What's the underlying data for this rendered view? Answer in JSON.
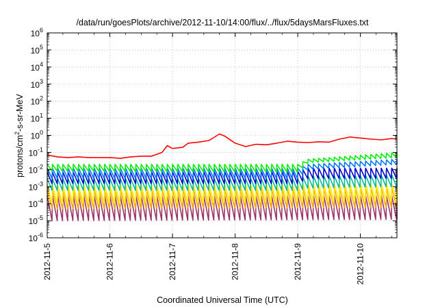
{
  "chart_data": {
    "type": "line",
    "title": "/data/run/goesPlots/archive/2012-11-10/14:00/flux/../flux/5daysMarsFluxes.txt",
    "xlabel": "Coordinated Universal Time (UTC)",
    "ylabel_base": "protons/cm",
    "ylabel_sup": "2",
    "ylabel_rest": "-s-sr-MeV",
    "yscale": "log",
    "ylim": [
      1e-06,
      1000000.0
    ],
    "xlim": [
      "2012-11-05 00:00",
      "2012-11-10 14:00"
    ],
    "grid": true,
    "legend": "none",
    "y_ticks": [
      {
        "exp": -6,
        "base": "10",
        "sup": "-6"
      },
      {
        "exp": -5,
        "base": "10",
        "sup": "-5"
      },
      {
        "exp": -4,
        "base": "10",
        "sup": "-4"
      },
      {
        "exp": -3,
        "base": "10",
        "sup": "-3"
      },
      {
        "exp": -2,
        "base": "10",
        "sup": "-2"
      },
      {
        "exp": -1,
        "base": "10",
        "sup": "-1"
      },
      {
        "exp": 0,
        "base": "10",
        "sup": "0"
      },
      {
        "exp": 1,
        "base": "10",
        "sup": "1"
      },
      {
        "exp": 2,
        "base": "10",
        "sup": "2"
      },
      {
        "exp": 3,
        "base": "10",
        "sup": "3"
      },
      {
        "exp": 4,
        "base": "10",
        "sup": "4"
      },
      {
        "exp": 5,
        "base": "10",
        "sup": "5"
      },
      {
        "exp": 6,
        "base": "10",
        "sup": "6"
      }
    ],
    "x_ticks": [
      "2012-11-5",
      "2012-11-6",
      "2012-11-7",
      "2012-11-8",
      "2012-11-9",
      "2012-11-10"
    ],
    "sample_step_hours": 2,
    "series": [
      {
        "color": "#ff0000",
        "kind": "ramp_points",
        "points": [
          [
            "2012-11-05 00:00",
            0.07
          ],
          [
            "2012-11-05 04:00",
            0.055
          ],
          [
            "2012-11-05 08:00",
            0.05
          ],
          [
            "2012-11-05 12:00",
            0.055
          ],
          [
            "2012-11-05 16:00",
            0.05
          ],
          [
            "2012-11-05 20:00",
            0.05
          ],
          [
            "2012-11-06 00:00",
            0.05
          ],
          [
            "2012-11-06 04:00",
            0.045
          ],
          [
            "2012-11-06 08:00",
            0.055
          ],
          [
            "2012-11-06 12:00",
            0.06
          ],
          [
            "2012-11-06 16:00",
            0.06
          ],
          [
            "2012-11-06 20:00",
            0.1
          ],
          [
            "2012-11-06 22:00",
            0.25
          ],
          [
            "2012-11-07 00:00",
            0.17
          ],
          [
            "2012-11-07 04:00",
            0.2
          ],
          [
            "2012-11-07 06:00",
            0.35
          ],
          [
            "2012-11-07 10:00",
            0.4
          ],
          [
            "2012-11-07 14:00",
            0.5
          ],
          [
            "2012-11-07 18:00",
            1.2
          ],
          [
            "2012-11-07 20:00",
            0.9
          ],
          [
            "2012-11-08 00:00",
            0.35
          ],
          [
            "2012-11-08 04:00",
            0.22
          ],
          [
            "2012-11-08 08:00",
            0.3
          ],
          [
            "2012-11-08 12:00",
            0.28
          ],
          [
            "2012-11-08 16:00",
            0.35
          ],
          [
            "2012-11-08 20:00",
            0.45
          ],
          [
            "2012-11-09 00:00",
            0.4
          ],
          [
            "2012-11-09 04:00",
            0.38
          ],
          [
            "2012-11-09 08:00",
            0.42
          ],
          [
            "2012-11-09 12:00",
            0.4
          ],
          [
            "2012-11-09 16:00",
            0.6
          ],
          [
            "2012-11-09 20:00",
            0.8
          ],
          [
            "2012-11-10 00:00",
            0.7
          ],
          [
            "2012-11-10 04:00",
            0.6
          ],
          [
            "2012-11-10 08:00",
            0.55
          ],
          [
            "2012-11-10 12:00",
            0.65
          ],
          [
            "2012-11-10 14:00",
            0.6
          ]
        ],
        "base_level": [
          [
            "2012-11-05 00:00",
            0.06
          ],
          [
            "2012-11-10 14:00",
            0.6
          ]
        ],
        "sawtooth_amp": 1.35
      },
      {
        "color": "#00ee00",
        "kind": "sawtooth",
        "peaks": [
          [
            "2012-11-05 00:00",
            0.02
          ],
          [
            "2012-11-09 00:00",
            0.02
          ],
          [
            "2012-11-09 04:00",
            0.04
          ],
          [
            "2012-11-10 14:00",
            0.1
          ]
        ],
        "troughs": [
          [
            "2012-11-05 00:00",
            0.008
          ],
          [
            "2012-11-09 00:00",
            0.007
          ],
          [
            "2012-11-09 04:00",
            0.025
          ],
          [
            "2012-11-10 14:00",
            0.05
          ]
        ]
      },
      {
        "color": "#0077ff",
        "kind": "sawtooth",
        "peaks": [
          [
            "2012-11-05 00:00",
            0.012
          ],
          [
            "2012-11-09 00:00",
            0.012
          ],
          [
            "2012-11-09 04:00",
            0.02
          ],
          [
            "2012-11-10 14:00",
            0.04
          ]
        ],
        "troughs": [
          [
            "2012-11-05 00:00",
            0.003
          ],
          [
            "2012-11-09 00:00",
            0.003
          ],
          [
            "2012-11-09 04:00",
            0.01
          ],
          [
            "2012-11-10 14:00",
            0.02
          ]
        ]
      },
      {
        "color": "#0000cc",
        "kind": "sawtooth",
        "peaks": [
          [
            "2012-11-05 00:00",
            0.007
          ],
          [
            "2012-11-09 00:00",
            0.008
          ],
          [
            "2012-11-09 04:00",
            0.012
          ],
          [
            "2012-11-10 14:00",
            0.012
          ]
        ],
        "troughs": [
          [
            "2012-11-05 00:00",
            0.0015
          ],
          [
            "2012-11-09 00:00",
            0.0015
          ],
          [
            "2012-11-09 04:00",
            0.003
          ],
          [
            "2012-11-10 14:00",
            0.003
          ]
        ]
      },
      {
        "color": "#00bb99",
        "kind": "sawtooth",
        "peaks": [
          [
            "2012-11-05 00:00",
            0.003
          ],
          [
            "2012-11-09 00:00",
            0.003
          ],
          [
            "2012-11-09 04:00",
            0.004
          ],
          [
            "2012-11-10 14:00",
            0.005
          ]
        ],
        "troughs": [
          [
            "2012-11-05 00:00",
            0.0006
          ],
          [
            "2012-11-09 00:00",
            0.0006
          ],
          [
            "2012-11-09 04:00",
            0.0008
          ],
          [
            "2012-11-10 14:00",
            0.001
          ]
        ]
      },
      {
        "color": "#ffee00",
        "kind": "sawtooth",
        "peaks": [
          [
            "2012-11-05 00:00",
            0.0012
          ],
          [
            "2012-11-10 14:00",
            0.0015
          ]
        ],
        "troughs": [
          [
            "2012-11-05 00:00",
            0.0001
          ],
          [
            "2012-11-10 14:00",
            0.00015
          ]
        ]
      },
      {
        "color": "#ffaa00",
        "kind": "sawtooth",
        "peaks": [
          [
            "2012-11-05 00:00",
            0.0006
          ],
          [
            "2012-11-10 14:00",
            0.0008
          ]
        ],
        "troughs": [
          [
            "2012-11-05 00:00",
            5e-05
          ],
          [
            "2012-11-10 14:00",
            6e-05
          ]
        ]
      },
      {
        "color": "#993366",
        "kind": "sawtooth",
        "peaks": [
          [
            "2012-11-05 00:00",
            0.0003
          ],
          [
            "2012-11-10 14:00",
            0.0003
          ]
        ],
        "troughs": [
          [
            "2012-11-05 00:00",
            1e-05
          ],
          [
            "2012-11-10 14:00",
            1.2e-05
          ]
        ]
      }
    ]
  }
}
